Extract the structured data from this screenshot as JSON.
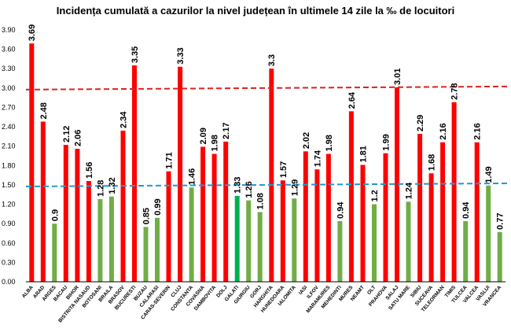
{
  "chart_data": {
    "type": "bar",
    "title": "Incidența cumulată a cazurilor la nivel județean în ultimele 14 zile la ‰ de locuitori",
    "xlabel": "",
    "ylabel": "",
    "ylim": [
      0,
      3.9
    ],
    "yticks": [
      "0.00",
      "0.30",
      "0.60",
      "0.90",
      "1.20",
      "1.50",
      "1.80",
      "2.10",
      "2.40",
      "2.70",
      "3.00",
      "3.30",
      "3.60",
      "3.90"
    ],
    "grid": false,
    "legend": "none",
    "categories": [
      "ALBA",
      "ARAD",
      "ARGES",
      "BACAU",
      "BIHOR",
      "BISTRITA NASAUD",
      "BOTOSANI",
      "BRAILA",
      "BRASOV",
      "BUCURESTI",
      "BUZAU",
      "CALARASI",
      "CARAS-SEVERIN",
      "CLUJ",
      "CONSTANTA",
      "COVASNA",
      "DAMBOVITA",
      "DOLJ",
      "GALATI",
      "GIURGIU",
      "GORJ",
      "HARGHITA",
      "HUNEDOARA",
      "IALOMITA",
      "IASI",
      "ILFOV",
      "MARAMURES",
      "MEHEDINTI",
      "MURES",
      "NEAMT",
      "OLT",
      "PRAHOVA",
      "SALAJ",
      "SATU MARE",
      "SIBIU",
      "SUCEAVA",
      "TELEORMAN",
      "TIMIS",
      "TULCEA",
      "VALCEA",
      "VASLUI",
      "VRANCEA"
    ],
    "values": [
      3.69,
      2.48,
      0.9,
      2.12,
      2.06,
      1.56,
      1.28,
      1.32,
      2.34,
      3.35,
      0.85,
      0.99,
      1.71,
      3.33,
      1.46,
      2.09,
      1.98,
      2.17,
      1.33,
      1.26,
      1.08,
      3.3,
      1.57,
      1.29,
      2.02,
      1.74,
      1.98,
      0.94,
      2.64,
      1.81,
      1.2,
      1.99,
      3.01,
      1.24,
      2.29,
      1.68,
      2.16,
      2.78,
      0.94,
      2.16,
      1.49,
      0.77
    ],
    "value_labels": [
      "3.69",
      "2.48",
      "0.9",
      "2.12",
      "2.06",
      "1.56",
      "1.28",
      "1.32",
      "2.34",
      "3.35",
      "0.85",
      "0.99",
      "1.71",
      "3.33",
      "1.46",
      "2.09",
      "1.98",
      "2.17",
      "1.33",
      "1.26",
      "1.08",
      "3.3",
      "1.57",
      "1.29",
      "2.02",
      "1.74",
      "1.98",
      "0.94",
      "2.64",
      "1.81",
      "1.2",
      "1.99",
      "3.01",
      "1.24",
      "2.29",
      "1.68",
      "2.16",
      "2.78",
      "0.94",
      "2.16",
      "1.49",
      "0.77"
    ],
    "thresholds": [
      {
        "value": 1.5,
        "color": "#1a9cd4",
        "style": "dashed"
      },
      {
        "value": 3.0,
        "color": "#e02020",
        "style": "dashed"
      }
    ],
    "colors": {
      "high": "#ff0000",
      "low": "#70ad47",
      "highlight": "#00b050",
      "axis": "#000000"
    },
    "highlight_category": "GALATI"
  }
}
